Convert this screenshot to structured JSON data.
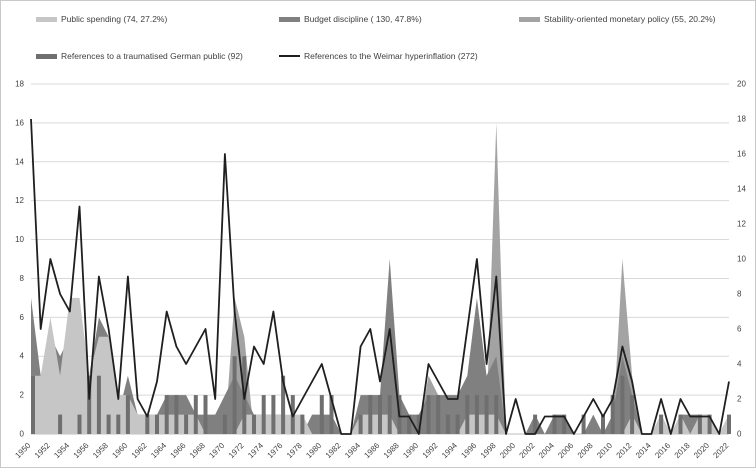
{
  "legend": {
    "items": [
      {
        "label": "Public spending (74, 27.2%)",
        "color": "#c6c6c6",
        "kind": "area"
      },
      {
        "label": "Budget discipline ( 130, 47.8%)",
        "color": "#808080",
        "kind": "area"
      },
      {
        "label": "Stability-oriented monetary policy (55, 20.2%)",
        "color": "#a3a3a3",
        "kind": "area"
      },
      {
        "label": "References to a traumatised German public (92)",
        "color": "#6f6f6f",
        "kind": "area"
      },
      {
        "label": "References to the Weimar hyperinflation (272)",
        "color": "#1f1f1f",
        "kind": "line"
      }
    ]
  },
  "chart_data": {
    "type": "combo (overlaid areas + bars + line)",
    "title": "",
    "xlabel": "",
    "ylabel": "",
    "x_start": 1950,
    "x_end": 2022,
    "x_tick_labels": [
      1950,
      1952,
      1954,
      1956,
      1958,
      1960,
      1962,
      1964,
      1966,
      1968,
      1970,
      1972,
      1974,
      1976,
      1978,
      1980,
      1982,
      1984,
      1986,
      1988,
      1990,
      1992,
      1994,
      1996,
      1998,
      2000,
      2002,
      2004,
      2006,
      2008,
      2010,
      2012,
      2014,
      2016,
      2018,
      2020,
      2022
    ],
    "axes": {
      "left": {
        "min": 0,
        "max": 18,
        "step": 2,
        "ticks": [
          0,
          2,
          4,
          6,
          8,
          10,
          12,
          14,
          16,
          18
        ]
      },
      "right": {
        "min": 0,
        "max": 20,
        "step": 2,
        "ticks": [
          0,
          2,
          4,
          6,
          8,
          10,
          12,
          14,
          16,
          18,
          20
        ]
      }
    },
    "grid": "horizontal, left-axis ticks, color #d9d9d9",
    "legend_position": "top, two rows",
    "series": [
      {
        "name": "Stability-oriented monetary policy",
        "type": "area",
        "axis": "left",
        "color": "#a3a3a3",
        "values": [
          0,
          0,
          0,
          0,
          0,
          1,
          0,
          1,
          0,
          0,
          0,
          0,
          0,
          0,
          0,
          0,
          0,
          0,
          0,
          0,
          0,
          7,
          5,
          0,
          0,
          0,
          0,
          0,
          0,
          0,
          0,
          0,
          0,
          0,
          0,
          0,
          0,
          2,
          0,
          0,
          0,
          3,
          2,
          1,
          1,
          1,
          1,
          1,
          16,
          0,
          0,
          0,
          0,
          0,
          0,
          0,
          0,
          0,
          0,
          0,
          0,
          9,
          3,
          0,
          0,
          1,
          0,
          0,
          0,
          0,
          0,
          0,
          0
        ]
      },
      {
        "name": "Budget discipline",
        "type": "area",
        "axis": "left",
        "color": "#808080",
        "values": [
          7,
          3,
          5,
          4,
          5,
          5,
          3,
          6,
          5,
          1,
          3,
          1,
          1,
          1,
          2,
          2,
          2,
          1,
          1,
          1,
          2,
          3,
          2,
          1,
          1,
          1,
          1,
          0,
          0,
          1,
          1,
          1,
          0,
          0,
          2,
          2,
          2,
          9,
          2,
          1,
          1,
          2,
          2,
          2,
          2,
          3,
          7,
          3,
          4,
          0,
          0,
          0,
          1,
          0,
          1,
          1,
          0,
          0,
          1,
          0,
          1,
          4,
          2,
          0,
          0,
          1,
          0,
          1,
          1,
          1,
          1,
          0,
          1
        ]
      },
      {
        "name": "Public spending",
        "type": "area",
        "axis": "left",
        "color": "#c6c6c6",
        "values": [
          3,
          3,
          6,
          3,
          7,
          7,
          3,
          5,
          5,
          2,
          2,
          1,
          1,
          1,
          1,
          1,
          1,
          1,
          0,
          0,
          0,
          0,
          1,
          1,
          1,
          1,
          1,
          1,
          1,
          0,
          0,
          0,
          0,
          0,
          1,
          1,
          1,
          1,
          0,
          0,
          0,
          0,
          0,
          0,
          0,
          1,
          1,
          1,
          1,
          0,
          0,
          0,
          0,
          0,
          0,
          0,
          0,
          0,
          0,
          0,
          0,
          0,
          1,
          0,
          0,
          1,
          0,
          1,
          0,
          1,
          1,
          0,
          1
        ]
      },
      {
        "name": "References to a traumatised German public",
        "type": "bar",
        "axis": "left",
        "color": "#6f6f6f",
        "values": [
          3,
          0,
          0,
          1,
          0,
          1,
          3,
          3,
          1,
          1,
          2,
          0,
          1,
          1,
          2,
          2,
          1,
          2,
          2,
          0,
          1,
          4,
          4,
          1,
          2,
          2,
          3,
          2,
          1,
          0,
          2,
          2,
          0,
          0,
          1,
          2,
          2,
          2,
          2,
          1,
          1,
          2,
          2,
          1,
          1,
          2,
          2,
          2,
          2,
          0,
          0,
          0,
          1,
          0,
          1,
          1,
          0,
          1,
          0,
          1,
          2,
          3,
          2,
          0,
          0,
          1,
          0,
          1,
          0,
          1,
          1,
          0,
          1
        ]
      },
      {
        "name": "References to the Weimar hyperinflation",
        "type": "line",
        "axis": "right",
        "color": "#1f1f1f",
        "values": [
          18,
          6,
          10,
          8,
          7,
          13,
          2,
          9,
          6,
          2,
          9,
          2,
          1,
          3,
          7,
          5,
          4,
          5,
          6,
          2,
          16,
          7,
          2,
          5,
          4,
          7,
          3,
          1,
          2,
          3,
          4,
          2,
          0,
          0,
          5,
          6,
          3,
          6,
          1,
          1,
          0,
          4,
          3,
          2,
          2,
          6,
          10,
          4,
          9,
          0,
          2,
          0,
          0,
          1,
          1,
          1,
          0,
          1,
          2,
          1,
          2,
          5,
          3,
          0,
          0,
          2,
          0,
          2,
          1,
          1,
          1,
          0,
          3
        ]
      }
    ],
    "colors": {
      "gridline": "#d9d9d9",
      "axis_line": "#bfbfbf",
      "tick_text": "#3f3f3f"
    }
  }
}
